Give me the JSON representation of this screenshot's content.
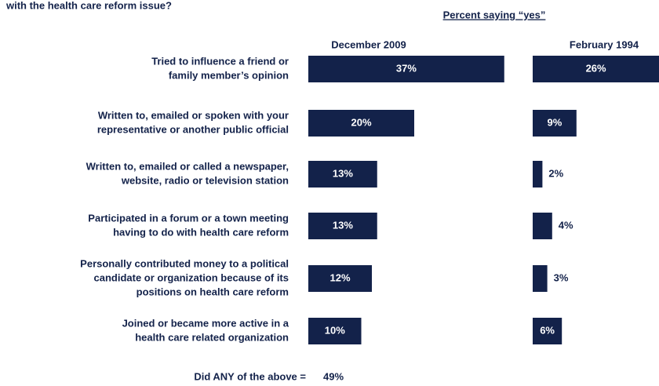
{
  "chart_data": {
    "type": "bar",
    "orientation": "horizontal",
    "title": "with the health care reform issue?",
    "subtitle": "Percent saying “yes”",
    "categories": [
      [
        "Tried to influence a friend or",
        "family member’s opinion"
      ],
      [
        "Written to, emailed or spoken with your",
        "representative or another public official"
      ],
      [
        "Written to, emailed or called a newspaper,",
        "website, radio or television station"
      ],
      [
        "Participated in a forum or a town meeting",
        "having to do with health care reform"
      ],
      [
        "Personally contributed money to a political",
        "candidate or organization because of its",
        "positions on health care reform"
      ],
      [
        "Joined or became more active in a",
        "health care related organization"
      ]
    ],
    "series": [
      {
        "name": "December 2009",
        "color": "#13224a",
        "values": [
          37,
          20,
          13,
          13,
          12,
          10
        ],
        "value_labels": [
          "37%",
          "20%",
          "13%",
          "13%",
          "12%",
          "10%"
        ]
      },
      {
        "name": "February 1994",
        "color": "#13224a",
        "values": [
          26,
          9,
          2,
          4,
          3,
          6
        ],
        "value_labels": [
          "26%",
          "9%",
          "2%",
          "4%",
          "3%",
          "6%"
        ]
      }
    ],
    "xlim": [
      0,
      40
    ],
    "footer": {
      "label": "Did ANY of the above =",
      "value_label": "49%"
    }
  }
}
